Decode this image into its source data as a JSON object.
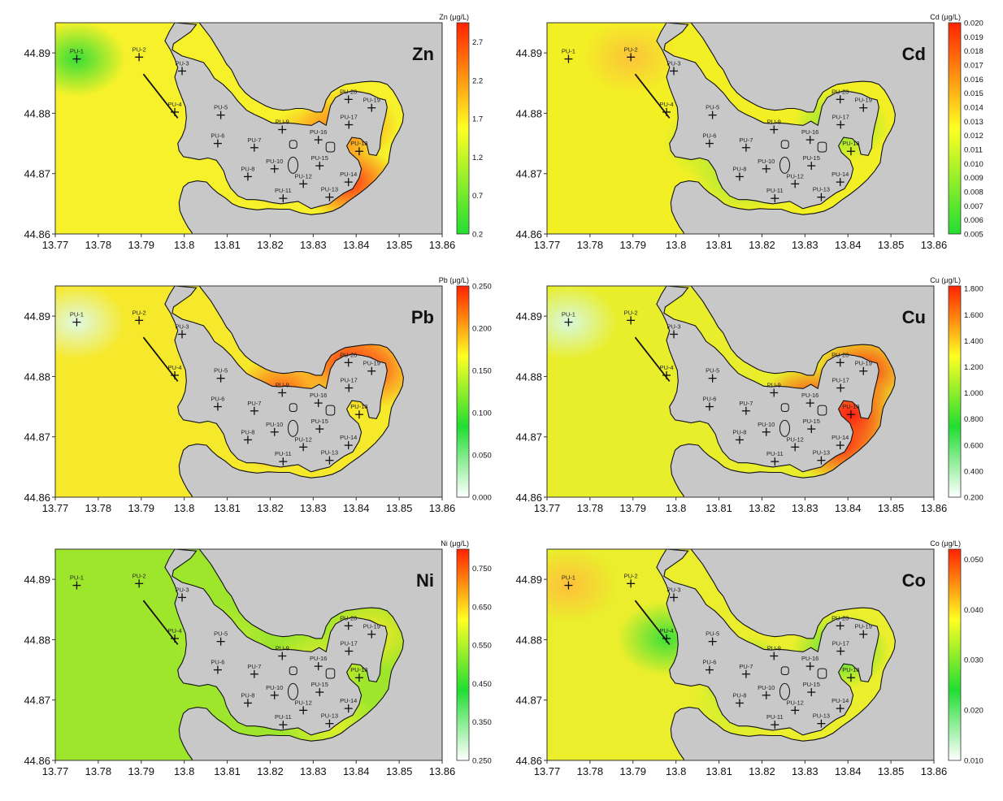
{
  "x_ticks": [
    "13.77",
    "13.78",
    "13.79",
    "13.8",
    "13.81",
    "13.82",
    "13.83",
    "13.84",
    "13.85",
    "13.86"
  ],
  "y_ticks": [
    "44.89",
    "44.88",
    "44.87",
    "44.86"
  ],
  "stations": [
    {
      "name": "PU-1",
      "lon": 13.775,
      "lat": 44.889
    },
    {
      "name": "PU-2",
      "lon": 13.7895,
      "lat": 44.8893
    },
    {
      "name": "PU-3",
      "lon": 13.7995,
      "lat": 44.887
    },
    {
      "name": "PU-4",
      "lon": 13.7978,
      "lat": 44.8802
    },
    {
      "name": "PU-5",
      "lon": 13.8085,
      "lat": 44.8797
    },
    {
      "name": "PU-6",
      "lon": 13.8078,
      "lat": 44.875
    },
    {
      "name": "PU-7",
      "lon": 13.8163,
      "lat": 44.8743
    },
    {
      "name": "PU-8",
      "lon": 13.8148,
      "lat": 44.8695
    },
    {
      "name": "PU-9",
      "lon": 13.8228,
      "lat": 44.8773
    },
    {
      "name": "PU-10",
      "lon": 13.821,
      "lat": 44.8708
    },
    {
      "name": "PU-11",
      "lon": 13.823,
      "lat": 44.8659
    },
    {
      "name": "PU-12",
      "lon": 13.8277,
      "lat": 44.8683
    },
    {
      "name": "PU-13",
      "lon": 13.8338,
      "lat": 44.8661
    },
    {
      "name": "PU-14",
      "lon": 13.8382,
      "lat": 44.8686
    },
    {
      "name": "PU-15",
      "lon": 13.8315,
      "lat": 44.8713
    },
    {
      "name": "PU-16",
      "lon": 13.8312,
      "lat": 44.8756
    },
    {
      "name": "PU-17",
      "lon": 13.8383,
      "lat": 44.8781
    },
    {
      "name": "PU-18",
      "lon": 13.8407,
      "lat": 44.8737
    },
    {
      "name": "PU-19",
      "lon": 13.8436,
      "lat": 44.8809
    },
    {
      "name": "PU-20",
      "lon": 13.8382,
      "lat": 44.8823
    }
  ],
  "panels": [
    {
      "element": "Zn",
      "legend_title": "Zn (μg/L)",
      "ticks": [
        "0.2",
        "0.7",
        "1.2",
        "1.7",
        "2.2",
        "2.7"
      ],
      "tick_values": [
        0.2,
        0.7,
        1.2,
        1.7,
        2.2,
        2.7
      ],
      "vmin": 0.2,
      "vmax": 2.95,
      "legend_colors": [
        "#22dd33",
        "#ffff22",
        "#ff2200"
      ],
      "surface": {
        "background": "#f6f12a",
        "hotspots": [
          {
            "lon": 13.775,
            "lat": 44.889,
            "color": "#37de35"
          },
          {
            "lon": 13.8382,
            "lat": 44.8686,
            "color": "#ff2c14"
          },
          {
            "lon": 13.8383,
            "lat": 44.8781,
            "color": "#ff7a1a"
          },
          {
            "lon": 13.821,
            "lat": 44.8708,
            "color": "#ff8a1c"
          },
          {
            "lon": 13.8312,
            "lat": 44.8756,
            "color": "#ff8b1c"
          }
        ]
      }
    },
    {
      "element": "Cd",
      "legend_title": "Cd (μg/L)",
      "ticks": [
        "0.005",
        "0.006",
        "0.007",
        "0.008",
        "0.009",
        "0.010",
        "0.011",
        "0.012",
        "0.013",
        "0.014",
        "0.015",
        "0.016",
        "0.017",
        "0.018",
        "0.019",
        "0.020"
      ],
      "tick_values": [
        0.005,
        0.006,
        0.007,
        0.008,
        0.009,
        0.01,
        0.011,
        0.012,
        0.013,
        0.014,
        0.015,
        0.016,
        0.017,
        0.018,
        0.019,
        0.02
      ],
      "vmin": 0.005,
      "vmax": 0.02,
      "legend_colors": [
        "#22dd33",
        "#ffff22",
        "#ff2200"
      ],
      "surface": {
        "background": "#f3ef25",
        "hotspots": [
          {
            "lon": 13.7895,
            "lat": 44.8893,
            "color": "#fbc43a"
          },
          {
            "lon": 13.8383,
            "lat": 44.8781,
            "color": "#72e63a"
          },
          {
            "lon": 13.821,
            "lat": 44.8708,
            "color": "#80e63a"
          },
          {
            "lon": 13.8148,
            "lat": 44.8695,
            "color": "#9ce83a"
          },
          {
            "lon": 13.8078,
            "lat": 44.875,
            "color": "#b2ec32"
          }
        ]
      }
    },
    {
      "element": "Pb",
      "legend_title": "Pb (μg/L)",
      "ticks": [
        "0.000",
        "0.050",
        "0.100",
        "0.150",
        "0.200",
        "0.250"
      ],
      "tick_values": [
        0.0,
        0.05,
        0.1,
        0.15,
        0.2,
        0.25
      ],
      "vmin": 0.0,
      "vmax": 0.25,
      "legend_colors": [
        "#ffffff",
        "#22dd33",
        "#ffff22",
        "#ff2200"
      ],
      "surface": {
        "background": "#f6e92c",
        "hotspots": [
          {
            "lon": 13.775,
            "lat": 44.889,
            "color": "#dff9e6"
          },
          {
            "lon": 13.8382,
            "lat": 44.8823,
            "color": "#ff3318"
          },
          {
            "lon": 13.821,
            "lat": 44.8708,
            "color": "#ff4818"
          },
          {
            "lon": 13.8228,
            "lat": 44.8773,
            "color": "#ff5a1a"
          },
          {
            "lon": 13.8436,
            "lat": 44.8809,
            "color": "#ff5a1c"
          }
        ]
      }
    },
    {
      "element": "Cu",
      "legend_title": "Cu (μg/L)",
      "ticks": [
        "0.200",
        "0.400",
        "0.600",
        "0.800",
        "1.000",
        "1.200",
        "1.400",
        "1.600",
        "1.800"
      ],
      "tick_values": [
        0.2,
        0.4,
        0.6,
        0.8,
        1.0,
        1.2,
        1.4,
        1.6,
        1.8
      ],
      "vmin": 0.2,
      "vmax": 1.82,
      "legend_colors": [
        "#ffffff",
        "#22dd33",
        "#ffff22",
        "#ff2200"
      ],
      "surface": {
        "background": "#e9ee2c",
        "hotspots": [
          {
            "lon": 13.775,
            "lat": 44.889,
            "color": "#d8f8e0"
          },
          {
            "lon": 13.8407,
            "lat": 44.8737,
            "color": "#ff1a12"
          },
          {
            "lon": 13.8312,
            "lat": 44.8756,
            "color": "#ff2c14"
          },
          {
            "lon": 13.8382,
            "lat": 44.8686,
            "color": "#ff2814"
          },
          {
            "lon": 13.8436,
            "lat": 44.8809,
            "color": "#ff3014"
          }
        ]
      }
    },
    {
      "element": "Ni",
      "legend_title": "Ni (μg/L)",
      "ticks": [
        "0.250",
        "0.350",
        "0.450",
        "0.550",
        "0.650",
        "0.750"
      ],
      "tick_values": [
        0.25,
        0.35,
        0.45,
        0.55,
        0.65,
        0.75
      ],
      "vmin": 0.25,
      "vmax": 0.8,
      "legend_colors": [
        "#ffffff",
        "#22dd33",
        "#ffff22",
        "#ff2200"
      ],
      "surface": {
        "background": "#9ee62c",
        "hotspots": [
          {
            "lon": 13.8436,
            "lat": 44.8809,
            "color": "#f9e826"
          },
          {
            "lon": 13.8312,
            "lat": 44.8756,
            "color": "#eaf02a"
          },
          {
            "lon": 13.8338,
            "lat": 44.8661,
            "color": "#eaf02a"
          },
          {
            "lon": 13.821,
            "lat": 44.8708,
            "color": "#5ee23a"
          },
          {
            "lon": 13.8085,
            "lat": 44.8797,
            "color": "#c4ee32"
          }
        ]
      }
    },
    {
      "element": "Co",
      "legend_title": "Co (μg/L)",
      "ticks": [
        "0.010",
        "0.020",
        "0.030",
        "0.040",
        "0.050"
      ],
      "tick_values": [
        0.01,
        0.02,
        0.03,
        0.04,
        0.05
      ],
      "vmin": 0.01,
      "vmax": 0.052,
      "legend_colors": [
        "#ffffff",
        "#22dd33",
        "#ffff22",
        "#ff2200"
      ],
      "surface": {
        "background": "#eaee2c",
        "hotspots": [
          {
            "lon": 13.775,
            "lat": 44.889,
            "color": "#ffc03a"
          },
          {
            "lon": 13.7978,
            "lat": 44.8802,
            "color": "#3ce038"
          },
          {
            "lon": 13.8383,
            "lat": 44.8781,
            "color": "#3ce038"
          },
          {
            "lon": 13.8163,
            "lat": 44.8743,
            "color": "#55e238"
          },
          {
            "lon": 13.8148,
            "lat": 44.8695,
            "color": "#c4ee32"
          }
        ]
      }
    }
  ]
}
